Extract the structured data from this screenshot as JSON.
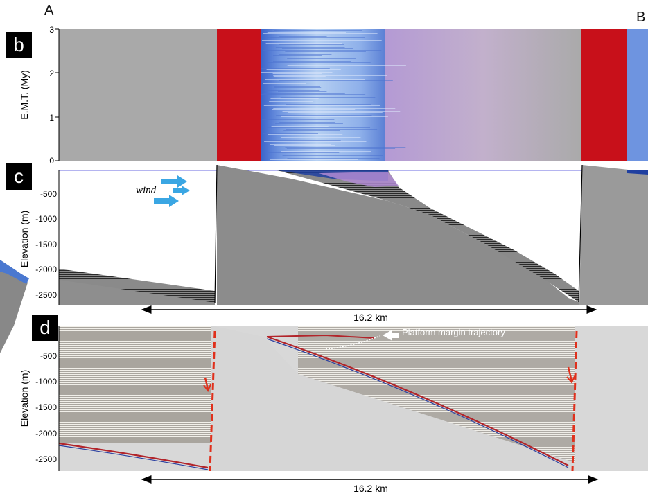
{
  "figure": {
    "corner_left": "A",
    "corner_right": "B",
    "panels": [
      {
        "id": "b",
        "badge": "b",
        "ylabel": "E.M.T. (My)",
        "yticks": [
          "3",
          "2",
          "1",
          "0"
        ]
      },
      {
        "id": "c",
        "badge": "c",
        "ylabel": "Elevation (m)",
        "yticks": [
          "-500",
          "-1000",
          "-1500",
          "-2000",
          "-2500"
        ],
        "annotation": "wind",
        "scale_label": "16.2 km"
      },
      {
        "id": "d",
        "badge": "d",
        "ylabel": "Elevation (m)",
        "yticks": [
          "-500",
          "-1000",
          "-1500",
          "-2000",
          "-2500"
        ],
        "annotation": "Platform margin trajectory",
        "scale_label": "16.2 km"
      }
    ],
    "colors": {
      "basement_gray": "#9a9a9a",
      "red": "#c8101a",
      "blue_dark": "#3a63c9",
      "blue_light": "#a8c4ee",
      "purple": "#a88ad0",
      "arrow_blue": "#3aa6e3",
      "seismic_bg": "#d6d6d6"
    }
  }
}
